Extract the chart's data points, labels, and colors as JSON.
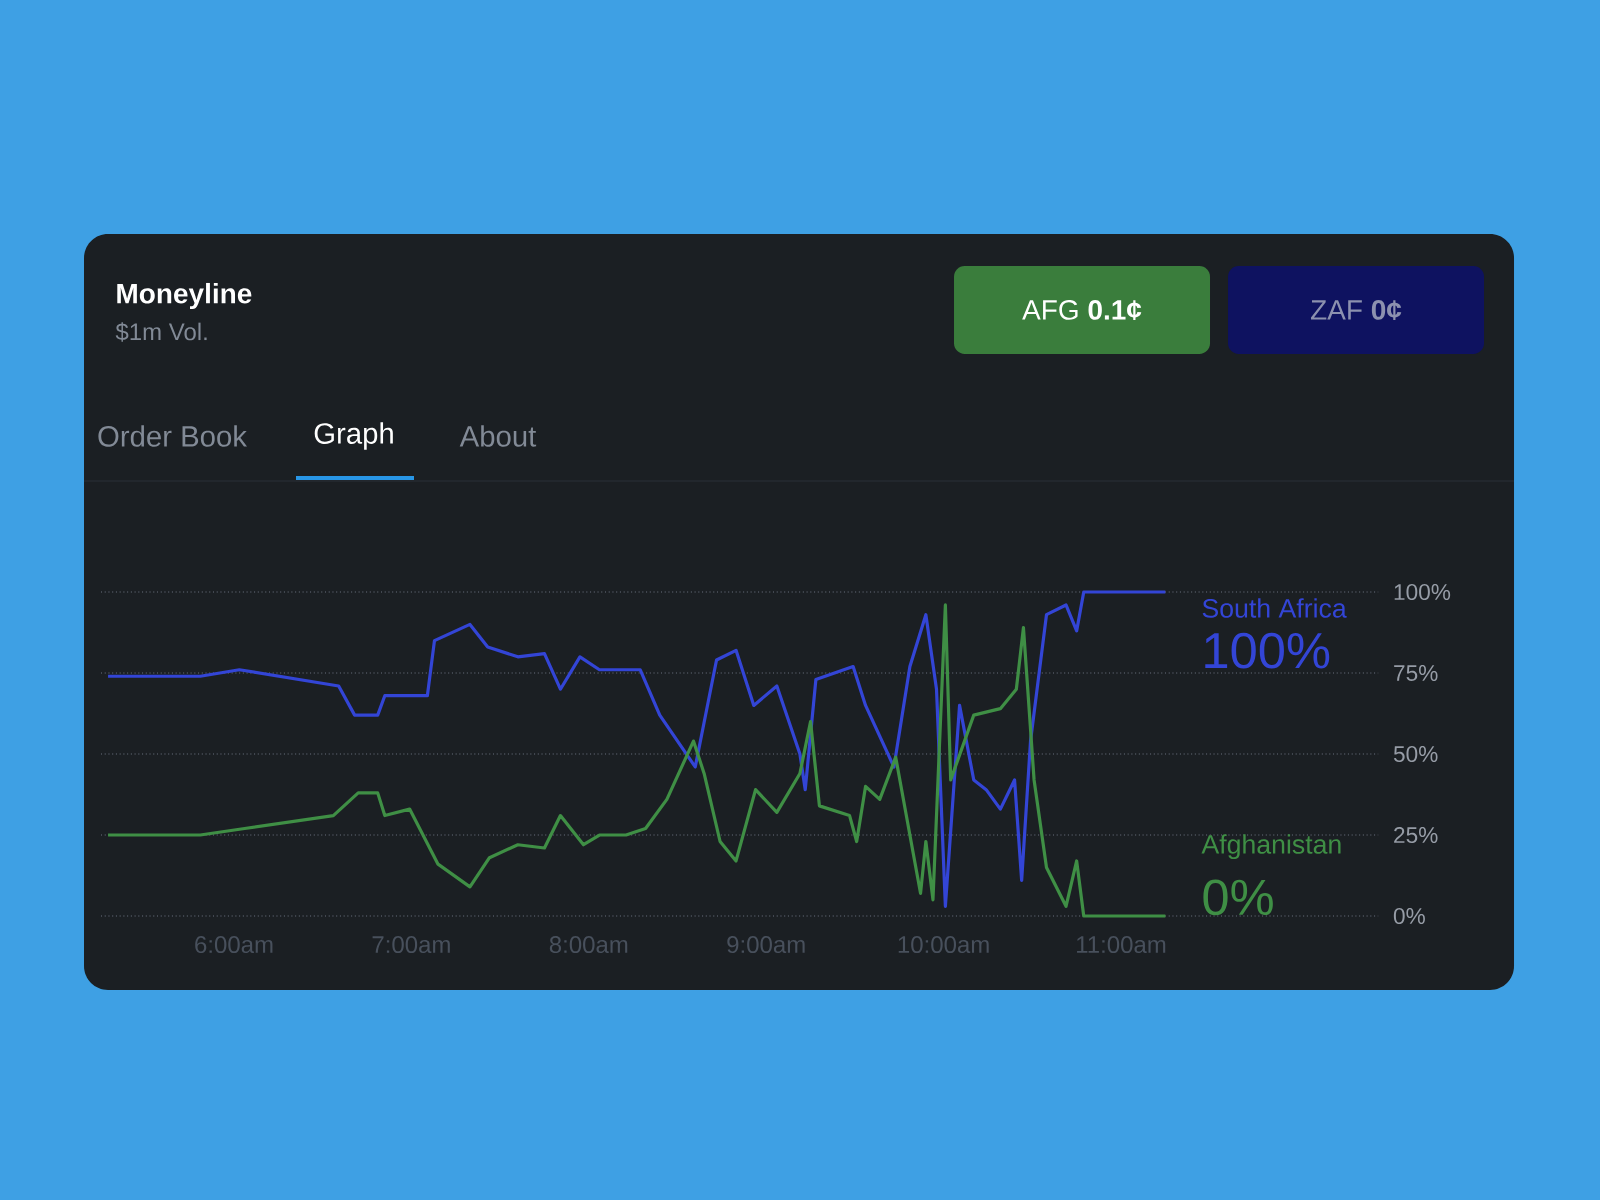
{
  "chart_data": {
    "type": "line",
    "title": "Moneyline",
    "subtitle": "$1m Vol.",
    "xlim": [
      5.25,
      12.45
    ],
    "ylim": [
      0,
      100
    ],
    "xticks": [
      {
        "value": 6,
        "label": "6:00am"
      },
      {
        "value": 7,
        "label": "7:00am"
      },
      {
        "value": 8,
        "label": "8:00am"
      },
      {
        "value": 9,
        "label": "9:00am"
      },
      {
        "value": 10,
        "label": "10:00am"
      },
      {
        "value": 11,
        "label": "11:00am"
      }
    ],
    "yticks": [
      {
        "value": 0,
        "label": "0%"
      },
      {
        "value": 25,
        "label": "25%"
      },
      {
        "value": 50,
        "label": "50%"
      },
      {
        "value": 75,
        "label": "75%"
      },
      {
        "value": 100,
        "label": "100%"
      }
    ],
    "grid": "y",
    "legend": false,
    "series": [
      {
        "name": "South Africa",
        "color": "#3345d6",
        "x": [
          5.29,
          5.81,
          6.03,
          6.59,
          6.68,
          6.81,
          6.85,
          7.09,
          7.13,
          7.33,
          7.43,
          7.6,
          7.75,
          7.84,
          7.95,
          8.06,
          8.29,
          8.4,
          8.6,
          8.72,
          8.83,
          8.93,
          9.06,
          9.19,
          9.22,
          9.28,
          9.49,
          9.56,
          9.72,
          9.81,
          9.9,
          9.96,
          10.01,
          10.09,
          10.17,
          10.24,
          10.32,
          10.4,
          10.44,
          10.49,
          10.58,
          10.69,
          10.75,
          10.79,
          11.25
        ],
        "values": [
          74,
          74,
          76,
          71,
          62,
          62,
          68,
          68,
          85,
          90,
          83,
          80,
          81,
          70,
          80,
          76,
          76,
          62,
          46,
          79,
          82,
          65,
          71,
          50,
          39,
          73,
          77,
          65,
          46,
          77,
          93,
          70,
          3,
          65,
          42,
          39,
          33,
          42,
          11,
          54,
          93,
          96,
          88,
          100,
          100
        ]
      },
      {
        "name": "Afghanistan",
        "color": "#3f8f45",
        "x": [
          5.29,
          5.81,
          6.06,
          6.56,
          6.7,
          6.81,
          6.85,
          6.99,
          7.15,
          7.33,
          7.44,
          7.6,
          7.75,
          7.84,
          7.97,
          8.06,
          8.21,
          8.32,
          8.44,
          8.59,
          8.65,
          8.74,
          8.83,
          8.94,
          9.06,
          9.19,
          9.25,
          9.3,
          9.47,
          9.51,
          9.56,
          9.64,
          9.73,
          9.83,
          9.87,
          9.9,
          9.94,
          10.01,
          10.04,
          10.17,
          10.32,
          10.41,
          10.45,
          10.51,
          10.58,
          10.69,
          10.75,
          10.79,
          11.25
        ],
        "values": [
          25,
          25,
          27,
          31,
          38,
          38,
          31,
          33,
          16,
          9,
          18,
          22,
          21,
          31,
          22,
          25,
          25,
          27,
          36,
          54,
          44,
          23,
          17,
          39,
          32,
          44,
          60,
          34,
          31,
          23,
          40,
          36,
          49,
          19,
          7,
          23,
          5,
          96,
          42,
          62,
          64,
          70,
          89,
          42,
          15,
          3,
          17,
          0,
          0
        ]
      }
    ],
    "annotations": [
      "AFG **0.1¢**",
      "ZAF **0¢**",
      "Order Book",
      "Graph",
      "About",
      {
        "text": "100%",
        "x": 11.25,
        "y": 100
      },
      {
        "text": "0%",
        "x": 11.25,
        "y": 0
      }
    ]
  }
}
